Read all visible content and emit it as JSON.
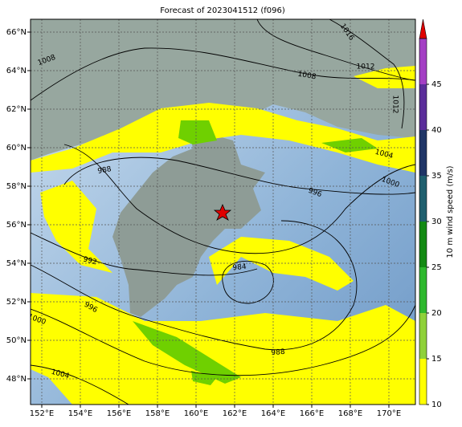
{
  "title": "Forecast of 2023041512 (f096)",
  "lat_labels": [
    "66°N",
    "64°N",
    "62°N",
    "60°N",
    "58°N",
    "56°N",
    "54°N",
    "52°N",
    "50°N",
    "48°N"
  ],
  "lon_labels": [
    "152°E",
    "154°E",
    "156°E",
    "158°E",
    "160°E",
    "162°E",
    "164°E",
    "166°E",
    "168°E",
    "170°E"
  ],
  "contour_labels": [
    "1016",
    "1008",
    "1008",
    "1012",
    "1012",
    "1004",
    "1000",
    "996",
    "988",
    "992",
    "984",
    "996",
    "1000",
    "988",
    "1004"
  ],
  "colorbar": {
    "label": "10 m wind speed (m/s)",
    "lim": [
      10,
      50
    ],
    "ticks": [
      10,
      15,
      20,
      25,
      30,
      35,
      40,
      45
    ],
    "colors": [
      "#ffff00",
      "#8fd13a",
      "#2eb82e",
      "#138a13",
      "#1f5f6e",
      "#1f3566",
      "#5a2d9a",
      "#a43fc4"
    ],
    "extend_color": "#e00000"
  }
}
